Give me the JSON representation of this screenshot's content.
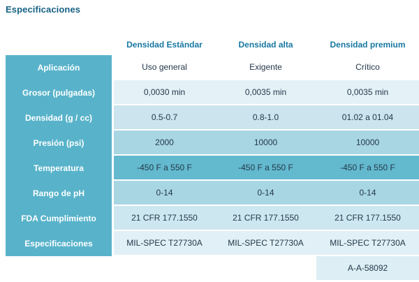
{
  "title": "Especificaciones",
  "columns": [
    "Densidad Estándar",
    "Densidad alta",
    "Densidad premium"
  ],
  "rows": [
    {
      "label": "Aplicación",
      "values": [
        "Uso general",
        "Exigente",
        "Crítico"
      ]
    },
    {
      "label": "Grosor (pulgadas)",
      "values": [
        "0,0030 min",
        "0,0035 min",
        "0,0035 min"
      ]
    },
    {
      "label": "Densidad (g / cc)",
      "values": [
        "0.5-0.7",
        "0.8-1.0",
        "01.02 a 01.04"
      ]
    },
    {
      "label": "Presión (psi)",
      "values": [
        "2000",
        "10000",
        "10000"
      ]
    },
    {
      "label": "Temperatura",
      "values": [
        "-450 F a 550 F",
        "-450 F a 550 F",
        "-450 F a 550 F"
      ]
    },
    {
      "label": "Rango de pH",
      "values": [
        "0-14",
        "0-14",
        "0-14"
      ]
    },
    {
      "label": "FDA Cumplimiento",
      "values": [
        "21 CFR 177.1550",
        "21 CFR 177.1550",
        "21 CFR 177.1550"
      ]
    },
    {
      "label": "Especificaciones",
      "values": [
        "MIL-SPEC T27730A",
        "MIL-SPEC T27730A",
        "MIL-SPEC T27730A"
      ]
    }
  ],
  "extra": {
    "value": "A-A-58092"
  },
  "colors": {
    "title_text": "#176285",
    "column_header_text": "#1878A2",
    "row_header_bg": "#58B3CA",
    "row_header_text": "#FFFFFF",
    "data_text": "#24384A",
    "row_shades": [
      "#FFFFFF",
      "#E4F1F7",
      "#CBE4EE",
      "#A8D6E3",
      "#63B9CE",
      "#A8D6E3",
      "#CDE7F0",
      "#E1F0F6"
    ],
    "extra_cell_bg": "#DDEEF4"
  }
}
